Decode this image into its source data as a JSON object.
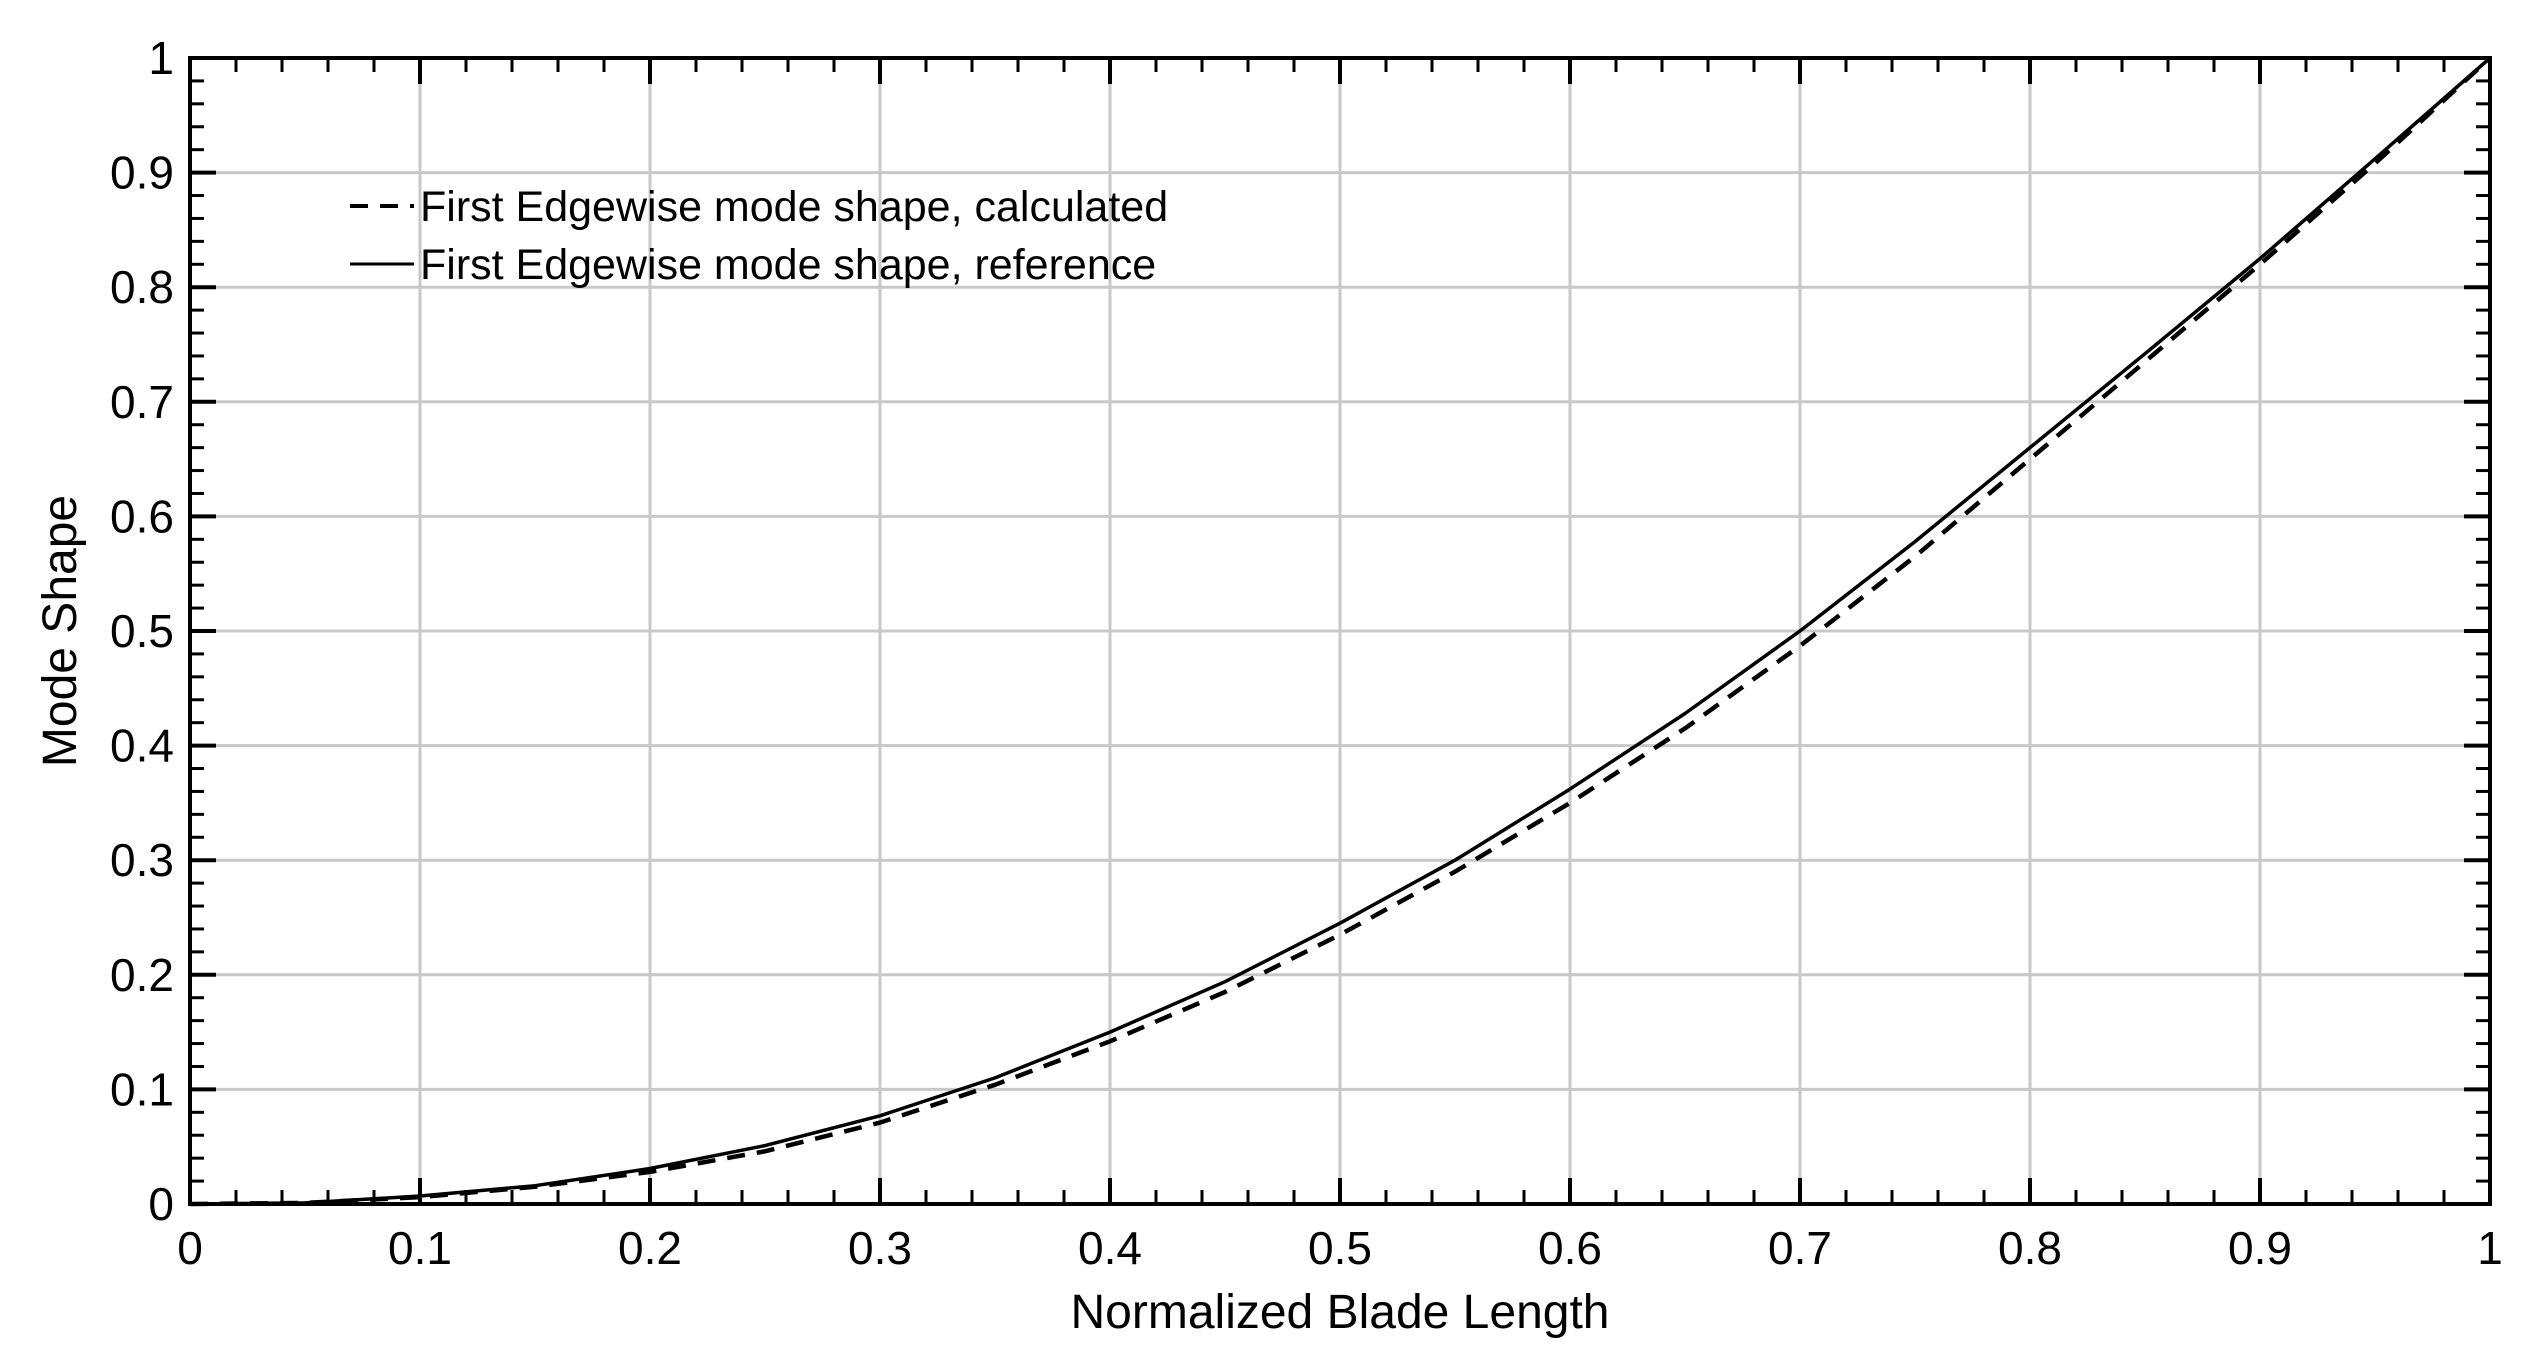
{
  "chart_data": {
    "type": "line",
    "title": "",
    "xlabel": "Normalized Blade Length",
    "ylabel": "Mode Shape",
    "xlim": [
      0,
      1
    ],
    "ylim": [
      0,
      1
    ],
    "xticks": [
      "0",
      "0.1",
      "0.2",
      "0.3",
      "0.4",
      "0.5",
      "0.6",
      "0.7",
      "0.8",
      "0.9",
      "1"
    ],
    "yticks": [
      "0",
      "0.1",
      "0.2",
      "0.3",
      "0.4",
      "0.5",
      "0.6",
      "0.7",
      "0.8",
      "0.9",
      "1"
    ],
    "grid": true,
    "legend_position": "top-left",
    "series": [
      {
        "name": "First Edgewise mode shape, calculated",
        "line_style": "dashed",
        "color": "#000000",
        "x": [
          0,
          0.05,
          0.1,
          0.15,
          0.2,
          0.25,
          0.3,
          0.35,
          0.4,
          0.45,
          0.5,
          0.55,
          0.6,
          0.65,
          0.7,
          0.75,
          0.8,
          0.85,
          0.9,
          0.95,
          1.0
        ],
        "y": [
          0,
          0.001,
          0.006,
          0.015,
          0.028,
          0.046,
          0.071,
          0.104,
          0.142,
          0.185,
          0.235,
          0.29,
          0.35,
          0.415,
          0.487,
          0.565,
          0.65,
          0.735,
          0.82,
          0.908,
          1.0
        ]
      },
      {
        "name": "First Edgewise mode shape, reference",
        "line_style": "solid",
        "color": "#000000",
        "x": [
          0,
          0.05,
          0.1,
          0.15,
          0.2,
          0.25,
          0.3,
          0.35,
          0.4,
          0.45,
          0.5,
          0.55,
          0.6,
          0.65,
          0.7,
          0.75,
          0.8,
          0.85,
          0.9,
          0.95,
          1.0
        ],
        "y": [
          0,
          0.001,
          0.007,
          0.016,
          0.031,
          0.051,
          0.077,
          0.11,
          0.15,
          0.194,
          0.245,
          0.3,
          0.362,
          0.428,
          0.5,
          0.578,
          0.66,
          0.742,
          0.825,
          0.912,
          1.0
        ]
      }
    ]
  }
}
